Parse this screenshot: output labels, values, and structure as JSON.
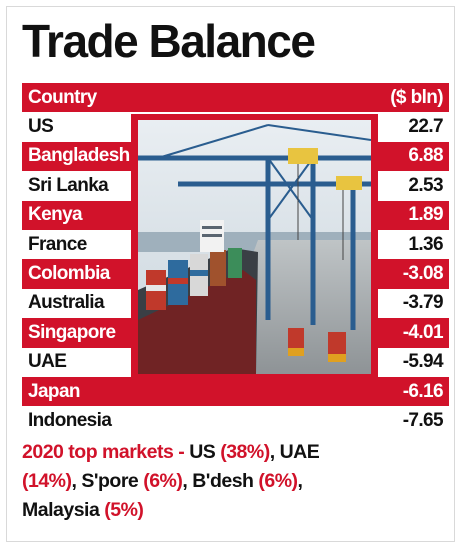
{
  "title": "Trade Balance",
  "chart_data": {
    "type": "table",
    "columns": [
      "Country",
      "($ bln)"
    ],
    "rows": [
      {
        "country": "US",
        "value": "22.7"
      },
      {
        "country": "Bangladesh",
        "value": "6.88"
      },
      {
        "country": "Sri Lanka",
        "value": "2.53"
      },
      {
        "country": "Kenya",
        "value": "1.89"
      },
      {
        "country": "France",
        "value": "1.36"
      },
      {
        "country": "Colombia",
        "value": "-3.08"
      },
      {
        "country": "Australia",
        "value": "-3.79"
      },
      {
        "country": "Singapore",
        "value": "-4.01"
      },
      {
        "country": "UAE",
        "value": "-5.94"
      },
      {
        "country": "Japan",
        "value": "-6.16"
      },
      {
        "country": "Indonesia",
        "value": "-7.65"
      }
    ]
  },
  "footer": {
    "label": "2020 top markets",
    "separator": " - ",
    "markets": [
      {
        "name": "US",
        "share": "(38%)"
      },
      {
        "name": "UAE",
        "share": "(14%)"
      },
      {
        "name": "S'pore",
        "share": "(6%)"
      },
      {
        "name": "B'desh",
        "share": "(6%)"
      },
      {
        "name": "Malaysia",
        "share": "(5%)"
      }
    ]
  },
  "colors": {
    "accent": "#d1122a",
    "text": "#111111"
  },
  "photo": {
    "icon": "container-port-photo-icon"
  }
}
